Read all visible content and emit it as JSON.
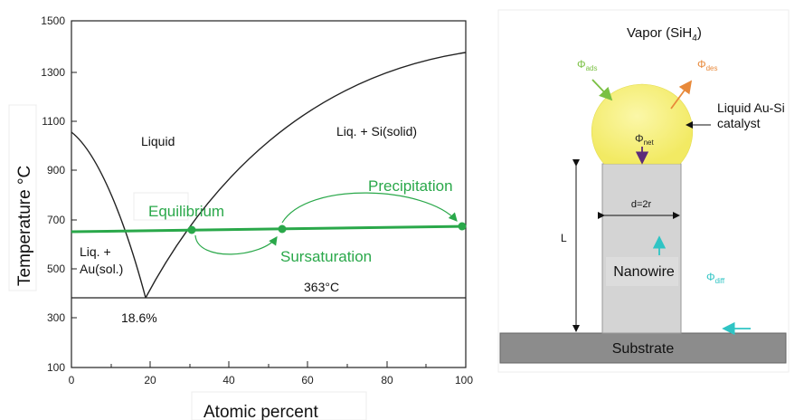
{
  "phase_diagram": {
    "axis": {
      "ylabel": "Temperature °C",
      "xlabel": "Atomic percent",
      "yticks": [
        "1500",
        "1300",
        "1100",
        "900",
        "700",
        "500",
        "300",
        "100"
      ],
      "xticks": [
        "0",
        "20",
        "40",
        "60",
        "80",
        "100"
      ]
    },
    "regions": {
      "liquid": "Liquid",
      "liq_si_solid": "Liq. + Si(solid)",
      "liq_au_line1": "Liq. +",
      "liq_au_line2": "Au(sol.)"
    },
    "eutectic_composition": "18.6%",
    "eutectic_temperature": "363°C",
    "process_labels": {
      "equilibrium": "Equilibrium",
      "precipitation": "Precipitation",
      "sursaturation": "Sursaturation"
    }
  },
  "vls_diagram": {
    "vapor_label": "Vapor (SiH",
    "vapor_sub": "4",
    "vapor_close": ")",
    "catalyst_line1": "Liquid Au-Si",
    "catalyst_line2": "catalyst",
    "flux_ads": "ads",
    "flux_des": "des",
    "flux_net": "net",
    "flux_diff": "diff",
    "flux_symbol": "Φ",
    "diameter_label": "d=2r",
    "length_label": "L",
    "nanowire_label": "Nanowire",
    "substrate_label": "Substrate"
  },
  "colors": {
    "green": "#2aa84a",
    "droplet": "#f7f07a",
    "nanowire": "#d4d4d4",
    "substrate": "#8c8c8c",
    "ads_arrow": "#7ac043",
    "des_arrow": "#e8893a",
    "net_arrow": "#5b2b7a",
    "diff_arrow": "#2fc4c4"
  }
}
